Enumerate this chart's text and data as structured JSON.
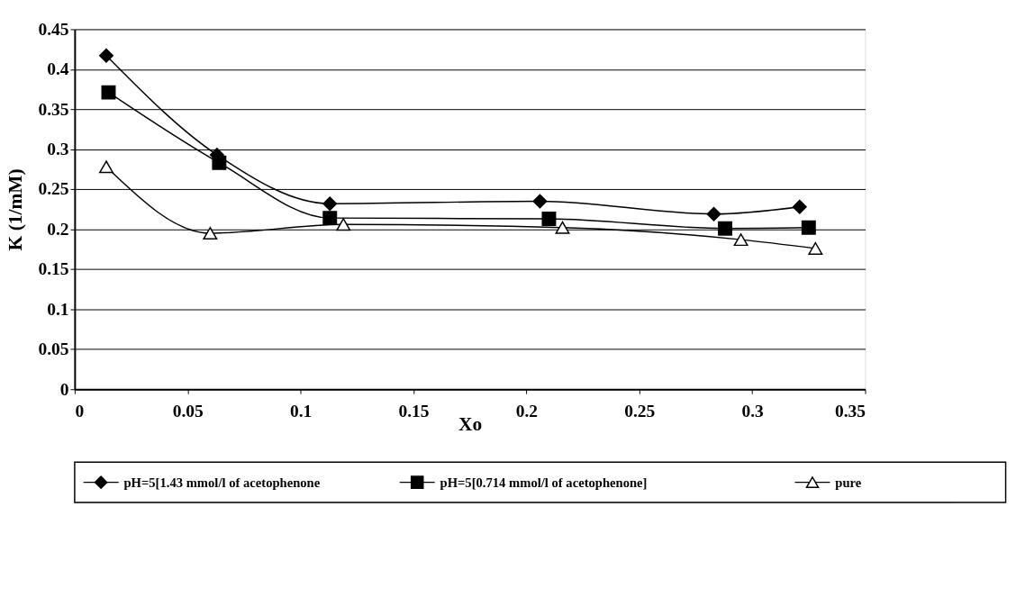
{
  "chart_data": {
    "type": "line",
    "xlabel": "Xo",
    "ylabel": "K (1/mM)",
    "xlim": [
      0,
      0.35
    ],
    "xticks": [
      0,
      0.05,
      0.1,
      0.15,
      0.2,
      0.25,
      0.3,
      0.35
    ],
    "ylim": [
      0,
      0.45
    ],
    "yticks": [
      0,
      0.05,
      0.1,
      0.15,
      0.2,
      0.25,
      0.3,
      0.35,
      0.4,
      0.45
    ],
    "grid": "y",
    "legend": "bottom",
    "line_style": "solid",
    "series": [
      {
        "name": "pH=5[1.43 mmol/l of acetophenone",
        "color": "#000000",
        "marker": "diamond",
        "x": [
          0.014,
          0.063,
          0.113,
          0.206,
          0.283,
          0.321
        ],
        "values": [
          0.417,
          0.293,
          0.232,
          0.235,
          0.219,
          0.228
        ]
      },
      {
        "name": "pH=5[0.714 mmol/l of acetophenone]",
        "color": "#000000",
        "marker": "square",
        "x": [
          0.015,
          0.064,
          0.113,
          0.21,
          0.288,
          0.325
        ],
        "values": [
          0.371,
          0.283,
          0.214,
          0.213,
          0.201,
          0.202
        ]
      },
      {
        "name": "pure",
        "color": "#000000",
        "marker": "triangle",
        "x": [
          0.014,
          0.06,
          0.119,
          0.216,
          0.295,
          0.328
        ],
        "values": [
          0.278,
          0.195,
          0.206,
          0.202,
          0.187,
          0.176
        ]
      }
    ]
  }
}
